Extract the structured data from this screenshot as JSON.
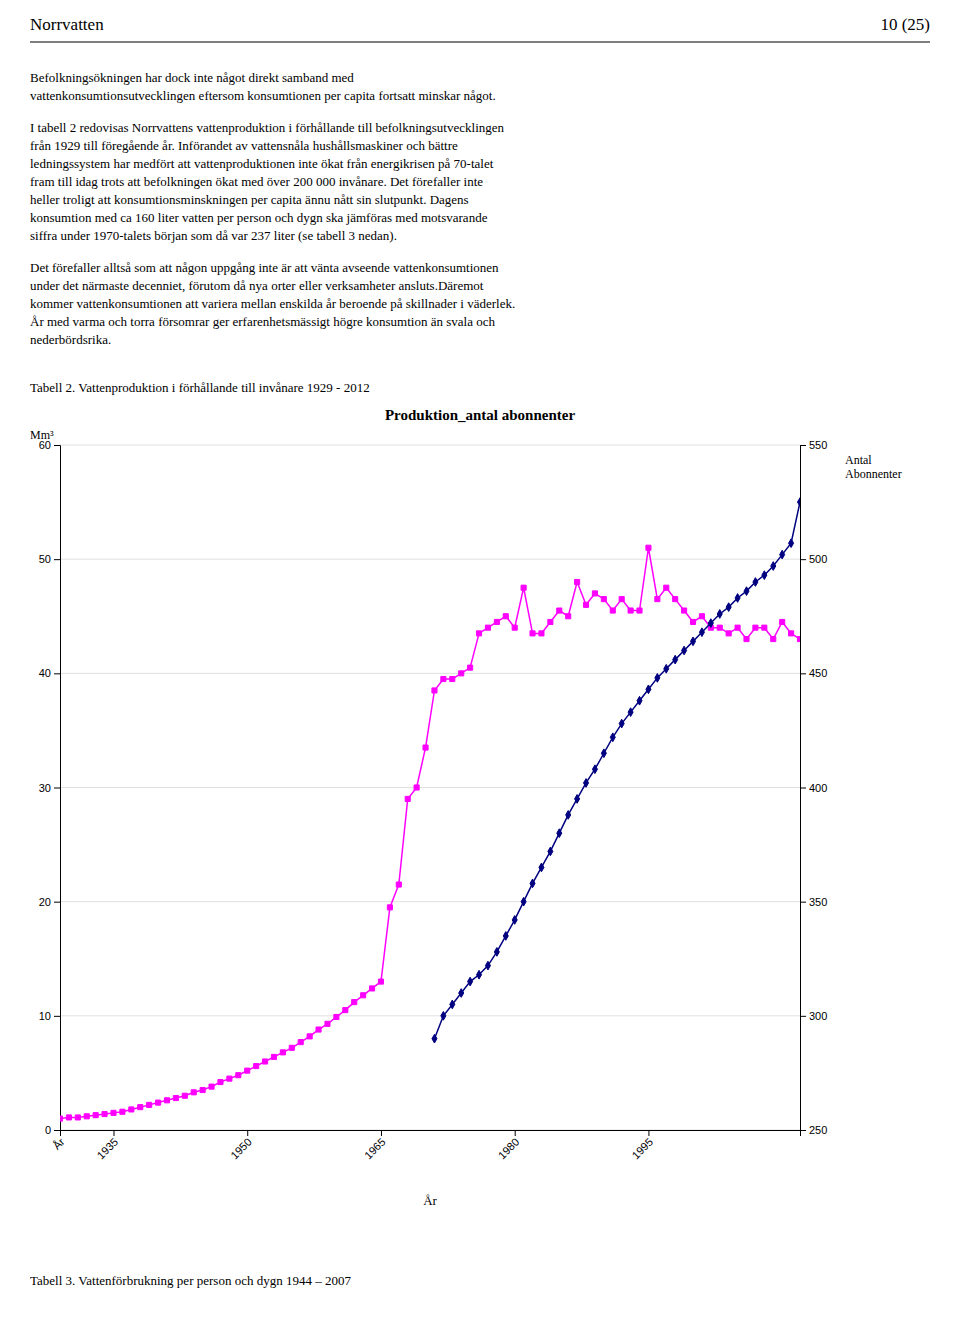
{
  "page": {
    "header": "Norrvatten",
    "page_number": "10 (25)",
    "paragraphs": [
      [
        "Befolkningsökningen har dock inte något direkt samband med",
        "vattenkonsumtionsutvecklingen eftersom konsumtionen per capita fortsatt minskar något."
      ],
      [
        "I tabell 2 redovisas Norrvattens vattenproduktion i förhållande till befolkningsutvecklingen",
        "från 1929 till föregående år. Införandet av vattensnåla hushållsmaskiner och bättre",
        "ledningssystem har medfört att vattenproduktionen inte ökat från energikrisen på 70-talet",
        "fram till idag trots att befolkningen ökat med över 200 000 invånare. Det förefaller inte",
        "heller troligt att konsumtionsminskningen per capita ännu nått sin slutpunkt. Dagens",
        "konsumtion med ca 160 liter vatten per person och dygn ska jämföras med motsvarande",
        "siffra under 1970-talets början som då var 237 liter (se tabell 3 nedan)."
      ],
      [
        "Det förefaller alltså som att någon uppgång inte är att vänta avseende vattenkonsumtionen",
        "under det närmaste decenniet, förutom då nya orter eller verksamheter ansluts.Däremot",
        "kommer vattenkonsumtionen att variera mellan enskilda år beroende på skillnader i väderlek.",
        "År med varma och torra försomrar ger erfarenhetsmässigt högre konsumtion än svala och",
        "nederbördsrika."
      ]
    ],
    "table_caption": "Tabell 2.  Vattenproduktion i förhållande till invånare 1929 - 2012",
    "bottom_caption": "Tabell 3.  Vattenförbrukning per person och dygn 1944 – 2007"
  },
  "chart_data": {
    "type": "line",
    "title": "Produktion_antal abonnenter",
    "xlabel": "År",
    "ylabel": "Mm³",
    "y2label": [
      "Antal",
      "Abonnenter"
    ],
    "x": [
      1929,
      1930,
      1931,
      1932,
      1933,
      1934,
      1935,
      1936,
      1937,
      1938,
      1939,
      1940,
      1941,
      1942,
      1943,
      1944,
      1945,
      1946,
      1947,
      1948,
      1949,
      1950,
      1951,
      1952,
      1953,
      1954,
      1955,
      1956,
      1957,
      1958,
      1959,
      1960,
      1961,
      1962,
      1963,
      1964,
      1965,
      1966,
      1967,
      1968,
      1969,
      1970,
      1971,
      1972,
      1973,
      1974,
      1975,
      1976,
      1977,
      1978,
      1979,
      1980,
      1981,
      1982,
      1983,
      1984,
      1985,
      1986,
      1987,
      1988,
      1989,
      1990,
      1991,
      1992,
      1993,
      1994,
      1995,
      1996,
      1997,
      1998,
      1999,
      2000,
      2001,
      2002,
      2003,
      2004,
      2005,
      2006,
      2007,
      2008,
      2009,
      2010,
      2011,
      2012
    ],
    "xlim": [
      1929,
      2012
    ],
    "xticks": [
      {
        "value": 1929,
        "label": "År"
      },
      1935,
      1950,
      1965,
      1980,
      1995
    ],
    "ylim": [
      0,
      60
    ],
    "yticks": [
      0,
      10,
      20,
      30,
      40,
      50,
      60
    ],
    "y2lim": [
      250,
      550
    ],
    "y2ticks": [
      250,
      300,
      350,
      400,
      450,
      500,
      550
    ],
    "grid": true,
    "series": [
      {
        "color": "#ff00ff",
        "marker": "square",
        "axis": "y",
        "values": [
          1.0,
          1.1,
          1.1,
          1.2,
          1.3,
          1.4,
          1.5,
          1.6,
          1.8,
          2.0,
          2.2,
          2.4,
          2.6,
          2.8,
          3.0,
          3.3,
          3.5,
          3.8,
          4.2,
          4.5,
          4.8,
          5.2,
          5.6,
          6.0,
          6.4,
          6.8,
          7.2,
          7.7,
          8.2,
          8.8,
          9.3,
          9.9,
          10.5,
          11.2,
          11.8,
          12.4,
          13.0,
          19.5,
          21.5,
          29.0,
          30.0,
          33.5,
          38.5,
          39.5,
          39.5,
          40.0,
          40.5,
          43.5,
          44.0,
          44.5,
          45.0,
          44.0,
          47.5,
          43.5,
          43.5,
          44.5,
          45.5,
          45.0,
          48.0,
          46.0,
          47.0,
          46.5,
          45.5,
          46.5,
          45.5,
          45.5,
          51.0,
          46.5,
          47.5,
          46.5,
          45.5,
          44.5,
          45.0,
          44.0,
          44.0,
          43.5,
          44.0,
          43.0,
          44.0,
          44.0,
          43.0,
          44.5,
          43.5,
          43.0
        ]
      },
      {
        "color": "#000080",
        "marker": "diamond",
        "axis": "y2",
        "values": [
          null,
          null,
          null,
          null,
          null,
          null,
          null,
          null,
          null,
          null,
          null,
          null,
          null,
          null,
          null,
          null,
          null,
          null,
          null,
          null,
          null,
          null,
          null,
          null,
          null,
          null,
          null,
          null,
          null,
          null,
          null,
          null,
          null,
          null,
          null,
          null,
          null,
          null,
          null,
          null,
          null,
          null,
          290,
          300,
          305,
          310,
          315,
          318,
          322,
          328,
          335,
          342,
          350,
          358,
          365,
          372,
          380,
          388,
          395,
          402,
          408,
          415,
          422,
          428,
          433,
          438,
          443,
          448,
          452,
          456,
          460,
          464,
          468,
          472,
          476,
          479,
          483,
          486,
          490,
          493,
          497,
          502,
          507,
          525
        ]
      }
    ]
  }
}
